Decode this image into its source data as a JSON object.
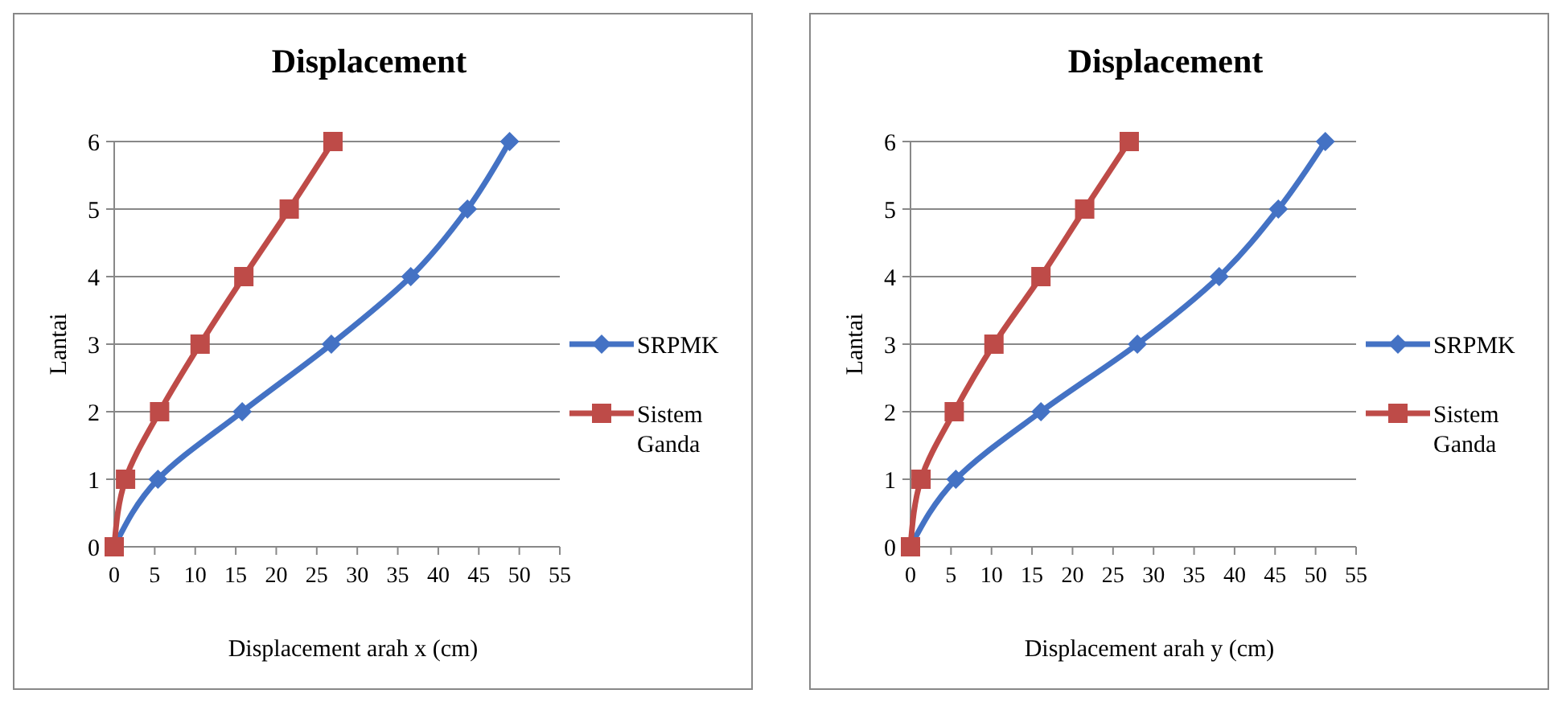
{
  "chart_data": [
    {
      "type": "line",
      "title": "Displacement",
      "xlabel": "Displacement arah x (cm)",
      "ylabel": "Lantai",
      "xlim": [
        0,
        55
      ],
      "xticks": [
        0,
        5,
        10,
        15,
        20,
        25,
        30,
        35,
        40,
        45,
        50,
        55
      ],
      "ylim": [
        0,
        6
      ],
      "yticks": [
        0,
        1,
        2,
        3,
        4,
        5,
        6
      ],
      "grid": "y",
      "legend": "right",
      "series": [
        {
          "name": "SRPMK",
          "color": "#4472c4",
          "marker": "diamond",
          "x": [
            0,
            5.4,
            15.8,
            26.8,
            36.6,
            43.6,
            48.8
          ],
          "values": [
            0,
            1,
            2,
            3,
            4,
            5,
            6
          ]
        },
        {
          "name": "Sistem Ganda",
          "color": "#be4b48",
          "marker": "square",
          "x": [
            0,
            1.4,
            5.6,
            10.6,
            16,
            21.6,
            27
          ],
          "values": [
            0,
            1,
            2,
            3,
            4,
            5,
            6
          ]
        }
      ]
    },
    {
      "type": "line",
      "title": "Displacement",
      "xlabel": "Displacement arah y (cm)",
      "ylabel": "Lantai",
      "xlim": [
        0,
        55
      ],
      "xticks": [
        0,
        5,
        10,
        15,
        20,
        25,
        30,
        35,
        40,
        45,
        50,
        55
      ],
      "ylim": [
        0,
        6
      ],
      "yticks": [
        0,
        1,
        2,
        3,
        4,
        5,
        6
      ],
      "grid": "y",
      "legend": "right",
      "series": [
        {
          "name": "SRPMK",
          "color": "#4472c4",
          "marker": "diamond",
          "x": [
            0,
            5.6,
            16.1,
            28,
            38.1,
            45.4,
            51.2
          ],
          "values": [
            0,
            1,
            2,
            3,
            4,
            5,
            6
          ]
        },
        {
          "name": "Sistem Ganda",
          "color": "#be4b48",
          "marker": "square",
          "x": [
            0,
            1.3,
            5.4,
            10.3,
            16.1,
            21.5,
            27
          ],
          "values": [
            0,
            1,
            2,
            3,
            4,
            5,
            6
          ]
        }
      ]
    }
  ]
}
